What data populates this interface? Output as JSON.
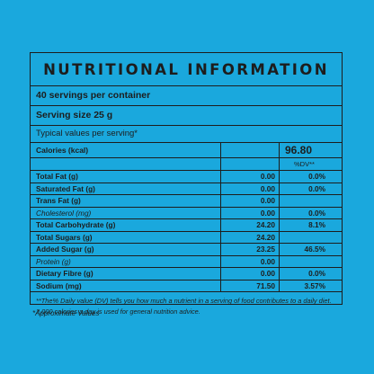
{
  "title": "NUTRITIONAL INFORMATION",
  "servings_per_container": "40 servings per container",
  "serving_size": "Serving size 25 g",
  "typical_values": "Typical values per serving*",
  "calories": {
    "label": "Calories (kcal)",
    "value": "96.80"
  },
  "dv_header": "%DV**",
  "rows": [
    {
      "name": "Total Fat (g)",
      "value": "0.00",
      "dv": "0.0%",
      "style": "bold"
    },
    {
      "name": "Saturated Fat (g)",
      "value": "0.00",
      "dv": "0.0%",
      "style": "bold"
    },
    {
      "name": "Trans Fat (g)",
      "value": "0.00",
      "dv": "",
      "style": "bold"
    },
    {
      "name": "Cholesterol (mg)",
      "value": "0.00",
      "dv": "0.0%",
      "style": "ital"
    },
    {
      "name": "Total Carbohydrate (g)",
      "value": "24.20",
      "dv": "8.1%",
      "style": "bold"
    },
    {
      "name": "Total Sugars (g)",
      "value": "24.20",
      "dv": "",
      "style": "bold"
    },
    {
      "name": "Added  Sugar (g)",
      "value": "23.25",
      "dv": "46.5%",
      "style": "bold"
    },
    {
      "name": "Protein (g)",
      "value": "0.00",
      "dv": "",
      "style": "ital"
    },
    {
      "name": "Dietary Fibre (g)",
      "value": "0.00",
      "dv": "0.0%",
      "style": "bold"
    },
    {
      "name": "Sodium (mg)",
      "value": "71.50",
      "dv": "3.57%",
      "style": "bold"
    }
  ],
  "footnote": "**The% Daily value (DV) tells you how much a nutrient in a serving of food contributes to a daily diet. 2,000 calories a day is used for general nutrition advice.",
  "approx_note": "*Approximate Values"
}
